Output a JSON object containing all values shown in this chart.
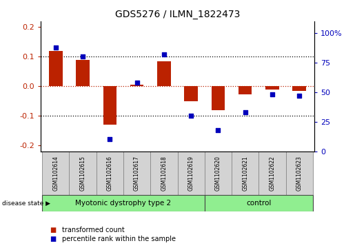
{
  "title": "GDS5276 / ILMN_1822473",
  "categories": [
    "GSM1102614",
    "GSM1102615",
    "GSM1102616",
    "GSM1102617",
    "GSM1102618",
    "GSM1102619",
    "GSM1102620",
    "GSM1102621",
    "GSM1102622",
    "GSM1102623"
  ],
  "bar_values": [
    0.12,
    0.09,
    -0.13,
    0.005,
    0.085,
    -0.05,
    -0.08,
    -0.028,
    -0.012,
    -0.015
  ],
  "dot_values": [
    88,
    80,
    10,
    58,
    82,
    30,
    18,
    33,
    48,
    47
  ],
  "bar_color": "#bb2200",
  "dot_color": "#0000bb",
  "ylim_left": [
    -0.22,
    0.22
  ],
  "ylim_right": [
    0,
    110
  ],
  "yticks_left": [
    -0.2,
    -0.1,
    0.0,
    0.1,
    0.2
  ],
  "yticks_right": [
    0,
    25,
    50,
    75,
    100
  ],
  "ytick_labels_right": [
    "0",
    "25",
    "50",
    "75",
    "100%"
  ],
  "group1_label": "Myotonic dystrophy type 2",
  "group2_label": "control",
  "group1_indices": [
    0,
    1,
    2,
    3,
    4,
    5
  ],
  "group2_indices": [
    6,
    7,
    8,
    9
  ],
  "disease_state_label": "disease state",
  "legend_bar_label": "transformed count",
  "legend_dot_label": "percentile rank within the sample",
  "group1_color": "#90ee90",
  "group2_color": "#90ee90",
  "grid_color": "#000000",
  "zero_line_color": "#bb2200",
  "background_color": "#ffffff",
  "xlabel_area_color": "#d3d3d3",
  "bar_width": 0.5
}
